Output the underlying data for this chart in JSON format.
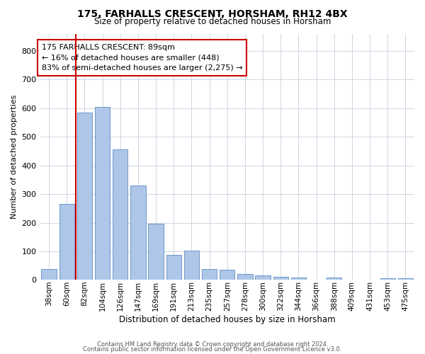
{
  "title": "175, FARHALLS CRESCENT, HORSHAM, RH12 4BX",
  "subtitle": "Size of property relative to detached houses in Horsham",
  "xlabel": "Distribution of detached houses by size in Horsham",
  "ylabel": "Number of detached properties",
  "categories": [
    "38sqm",
    "60sqm",
    "82sqm",
    "104sqm",
    "126sqm",
    "147sqm",
    "169sqm",
    "191sqm",
    "213sqm",
    "235sqm",
    "257sqm",
    "278sqm",
    "300sqm",
    "322sqm",
    "344sqm",
    "366sqm",
    "388sqm",
    "409sqm",
    "431sqm",
    "453sqm",
    "475sqm"
  ],
  "values": [
    38,
    265,
    585,
    603,
    455,
    330,
    197,
    88,
    102,
    37,
    35,
    20,
    15,
    12,
    8,
    0,
    8,
    1,
    0,
    5,
    7
  ],
  "bar_color": "#aec6e8",
  "bar_edge_color": "#5a8fc2",
  "property_line_color": "#cc0000",
  "ylim": [
    0,
    860
  ],
  "yticks": [
    0,
    100,
    200,
    300,
    400,
    500,
    600,
    700,
    800
  ],
  "annotation_text": "175 FARHALLS CRESCENT: 89sqm\n← 16% of detached houses are smaller (448)\n83% of semi-detached houses are larger (2,275) →",
  "annotation_box_color": "#cc0000",
  "footer_line1": "Contains HM Land Registry data © Crown copyright and database right 2024.",
  "footer_line2": "Contains public sector information licensed under the Open Government Licence v3.0.",
  "background_color": "#ffffff",
  "grid_color": "#c8d0dc",
  "title_fontsize": 10,
  "subtitle_fontsize": 8.5,
  "ylabel_fontsize": 8,
  "xlabel_fontsize": 8.5,
  "tick_fontsize": 7.5,
  "annotation_fontsize": 8,
  "footer_fontsize": 6
}
